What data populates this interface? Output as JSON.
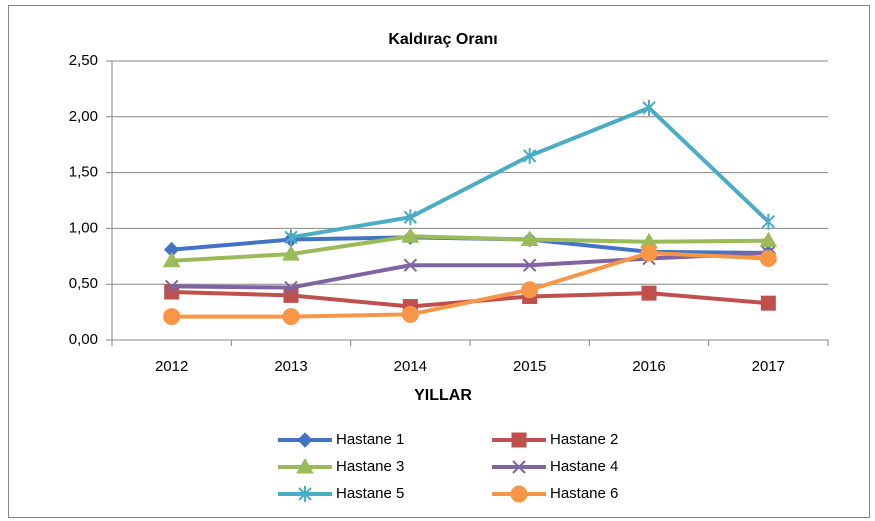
{
  "chart_data": {
    "type": "line",
    "title": "Kaldıraç Oranı",
    "x_label": "YILLAR",
    "categories": [
      "2012",
      "2013",
      "2014",
      "2015",
      "2016",
      "2017"
    ],
    "series": [
      {
        "name": "Hastane 1",
        "color": "#4472c4",
        "marker": "diamond",
        "values": [
          0.81,
          0.9,
          0.92,
          0.9,
          0.79,
          0.78
        ]
      },
      {
        "name": "Hastane 2",
        "color": "#c0504d",
        "marker": "square",
        "values": [
          0.43,
          0.4,
          0.3,
          0.39,
          0.42,
          0.33
        ]
      },
      {
        "name": "Hastane 3",
        "color": "#9bbb59",
        "marker": "triangle",
        "values": [
          0.71,
          0.77,
          0.93,
          0.9,
          0.88,
          0.89
        ]
      },
      {
        "name": "Hastane 4",
        "color": "#8064a2",
        "marker": "x",
        "values": [
          0.48,
          0.47,
          0.67,
          0.67,
          0.73,
          0.78
        ]
      },
      {
        "name": "Hastane 5",
        "color": "#4bacc6",
        "marker": "star",
        "values": [
          null,
          0.92,
          1.1,
          1.65,
          2.08,
          1.06
        ]
      },
      {
        "name": "Hastane 6",
        "color": "#f79646",
        "marker": "circle",
        "values": [
          0.21,
          0.21,
          0.23,
          0.45,
          0.78,
          0.73
        ]
      }
    ],
    "ylim": [
      0,
      2.5
    ],
    "yticks": [
      {
        "value": 0,
        "label": "0,00"
      },
      {
        "value": 0.5,
        "label": "0,50"
      },
      {
        "value": 1,
        "label": "1,00"
      },
      {
        "value": 1.5,
        "label": "1,50"
      },
      {
        "value": 2,
        "label": "2,00"
      },
      {
        "value": 2.5,
        "label": "2,50"
      }
    ],
    "grid": true,
    "legend": "bottom"
  }
}
